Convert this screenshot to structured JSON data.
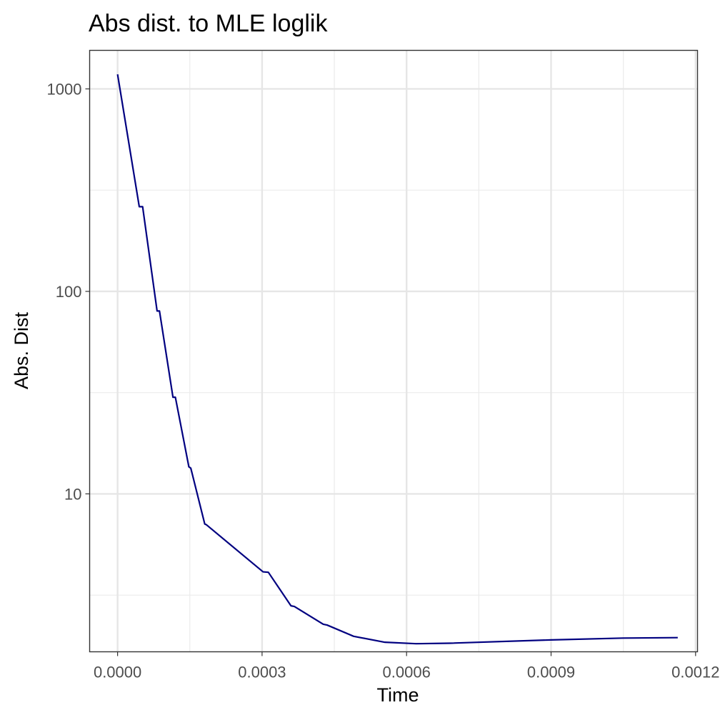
{
  "chart_data": {
    "type": "line",
    "title": "Abs dist. to MLE loglik",
    "xlabel": "Time",
    "ylabel": "Abs. Dist",
    "x_scale": "linear",
    "y_scale": "log10",
    "xlim": [
      -5.8e-05,
      0.001204
    ],
    "ylim": [
      1.66,
      1550
    ],
    "x_ticks": [
      {
        "value": 0.0,
        "label": "0.0000"
      },
      {
        "value": 0.0003,
        "label": "0.0003"
      },
      {
        "value": 0.0006,
        "label": "0.0006"
      },
      {
        "value": 0.0009,
        "label": "0.0009"
      },
      {
        "value": 0.0012,
        "label": "0.0012"
      }
    ],
    "x_minor_ticks": [
      0.00015,
      0.00045,
      0.00075,
      0.00105
    ],
    "y_ticks": [
      {
        "value": 10,
        "label": "10"
      },
      {
        "value": 100,
        "label": "100"
      },
      {
        "value": 1000,
        "label": "1000"
      }
    ],
    "y_minor_ticks": [
      3.162,
      31.62,
      316.2
    ],
    "grid": true,
    "series": [
      {
        "color": "#000080",
        "points": [
          {
            "x": 0.0,
            "y": 1180
          },
          {
            "x": 4.5e-05,
            "y": 262
          },
          {
            "x": 5.2e-05,
            "y": 262
          },
          {
            "x": 8.2e-05,
            "y": 80
          },
          {
            "x": 8.7e-05,
            "y": 80
          },
          {
            "x": 0.000115,
            "y": 30
          },
          {
            "x": 0.00012,
            "y": 30
          },
          {
            "x": 0.000148,
            "y": 13.6
          },
          {
            "x": 0.000152,
            "y": 13.4
          },
          {
            "x": 0.000181,
            "y": 7.1
          },
          {
            "x": 0.000184,
            "y": 7.05
          },
          {
            "x": 0.000302,
            "y": 4.12
          },
          {
            "x": 0.000313,
            "y": 4.1
          },
          {
            "x": 0.00036,
            "y": 2.8
          },
          {
            "x": 0.000367,
            "y": 2.78
          },
          {
            "x": 0.000427,
            "y": 2.27
          },
          {
            "x": 0.000435,
            "y": 2.25
          },
          {
            "x": 0.00049,
            "y": 1.98
          },
          {
            "x": 0.000555,
            "y": 1.85
          },
          {
            "x": 0.00062,
            "y": 1.82
          },
          {
            "x": 0.00069,
            "y": 1.83
          },
          {
            "x": 0.0009,
            "y": 1.9
          },
          {
            "x": 0.00105,
            "y": 1.94
          },
          {
            "x": 0.001163,
            "y": 1.95
          }
        ]
      }
    ]
  }
}
